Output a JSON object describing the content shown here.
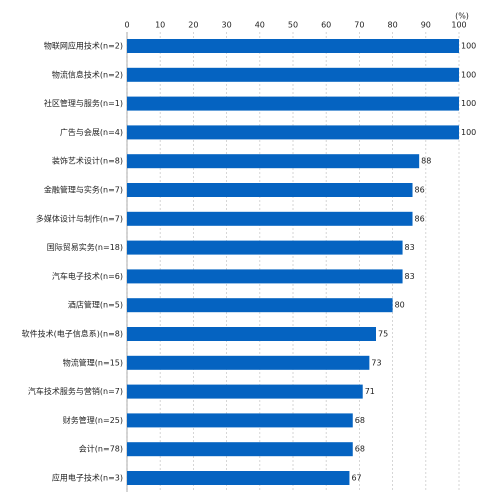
{
  "chart_data": {
    "type": "bar",
    "orientation": "horizontal",
    "unit_label": "(%)",
    "categories": [
      "物联网应用技术(n=2)",
      "物流信息技术(n=2)",
      "社区管理与服务(n=1)",
      "广告与会展(n=4)",
      "装饰艺术设计(n=8)",
      "金融管理与实务(n=7)",
      "多媒体设计与制作(n=7)",
      "国际贸易实务(n=18)",
      "汽车电子技术(n=6)",
      "酒店管理(n=5)",
      "软件技术(电子信息系)(n=8)",
      "物流管理(n=15)",
      "汽车技术服务与营销(n=7)",
      "财务管理(n=25)",
      "会计(n=78)",
      "应用电子技术(n=3)"
    ],
    "values": [
      100,
      100,
      100,
      100,
      88,
      86,
      86,
      83,
      83,
      80,
      75,
      73,
      71,
      68,
      68,
      67
    ],
    "color": "#0563c1",
    "xlim": [
      0,
      100
    ],
    "xticks": [
      0,
      10,
      20,
      30,
      40,
      50,
      60,
      70,
      80,
      90,
      100
    ],
    "grid": true
  }
}
